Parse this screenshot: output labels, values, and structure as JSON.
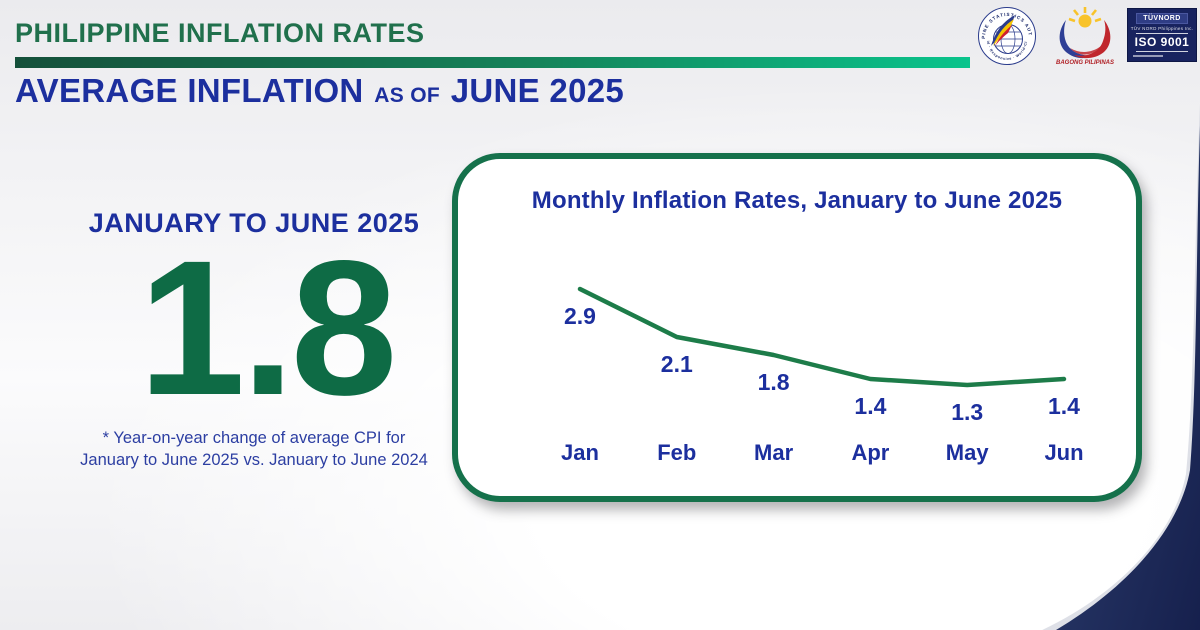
{
  "header": {
    "title": "PHILIPPINE INFLATION RATES",
    "subtitle_main": "AVERAGE INFLATION",
    "subtitle_connector": "AS OF",
    "subtitle_period": "JUNE 2025"
  },
  "logos": {
    "psa_seal_top_text": "PHILIPPINE STATISTICS AUTHORITY",
    "psa_seal_bottom_text": "Solid · Responsive · World-Class",
    "bagong_pilipinas_label": "BAGONG PILIPINAS",
    "tuv_brand": "TÜVNORD",
    "tuv_org": "TÜV NORD Philippines Inc.",
    "tuv_cert": "ISO 9001"
  },
  "highlight": {
    "period_label": "JANUARY TO JUNE 2025",
    "value": "1.8",
    "footnote_line1": "* Year-on-year change of average CPI for",
    "footnote_line2": "January to June 2025 vs. January to June 2024"
  },
  "chart_data": {
    "type": "line",
    "title": "Monthly Inflation Rates, January to June 2025",
    "categories": [
      "Jan",
      "Feb",
      "Mar",
      "Apr",
      "May",
      "Jun"
    ],
    "values": [
      2.9,
      2.1,
      1.8,
      1.4,
      1.3,
      1.4
    ],
    "xlabel": "",
    "ylabel": "",
    "ylim": [
      1.0,
      3.2
    ],
    "grid": false,
    "legend": false,
    "data_labels": true,
    "line_color": "#1d7c49",
    "label_color": "#1c2f9e"
  },
  "colors": {
    "header_green": "#20704c",
    "bar_gradient_start": "#14503a",
    "bar_gradient_end": "#0ac48c",
    "royal_blue": "#1c2f9e",
    "value_green": "#0e6b45",
    "card_border_green": "#15714b",
    "corner_navy": "#1d2b5e"
  }
}
